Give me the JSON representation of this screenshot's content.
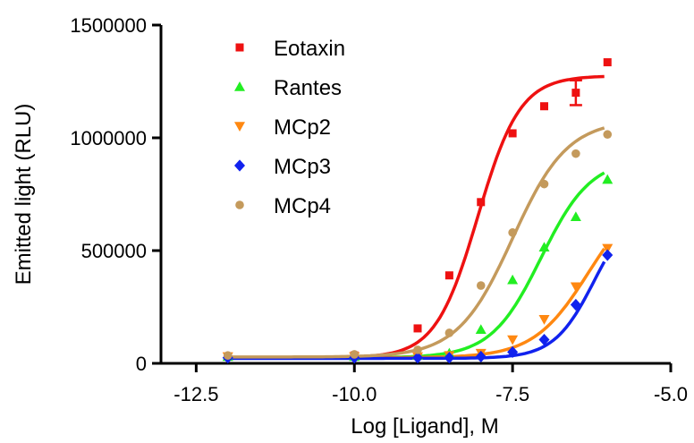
{
  "chart_data": {
    "type": "scatter",
    "xlabel": "Log [Ligand], M",
    "ylabel": "Emitted light (RLU)",
    "xlim": [
      -13.0,
      -5.0
    ],
    "ylim": [
      0,
      1500000
    ],
    "xticks": [
      -12.5,
      -10.0,
      -7.5,
      -5.0
    ],
    "xtick_labels": [
      "-12.5",
      "-10.0",
      "-7.5",
      "-5.0"
    ],
    "yticks": [
      0,
      500000,
      1000000,
      1500000
    ],
    "ytick_labels": [
      "0",
      "500000",
      "1000000",
      "1500000"
    ],
    "legend_position": "top-left",
    "series": [
      {
        "name": "Eotaxin",
        "color": "#ee1111",
        "marker": "square",
        "x": [
          -12,
          -10,
          -9,
          -8.5,
          -8,
          -7.5,
          -7,
          -6.5,
          -6
        ],
        "y": [
          30000,
          35000,
          155000,
          390000,
          715000,
          1020000,
          1140000,
          1200000,
          1335000
        ],
        "error": [
          0,
          0,
          0,
          0,
          0,
          0,
          0,
          55000,
          0
        ],
        "fit": {
          "bottom": 25000,
          "top": 1275000,
          "logec50": -8.05,
          "hill": 1.3
        }
      },
      {
        "name": "Rantes",
        "color": "#22ee22",
        "marker": "triangle-up",
        "x": [
          -12,
          -10,
          -9,
          -8.5,
          -8,
          -7.5,
          -7,
          -6.5,
          -6
        ],
        "y": [
          30000,
          30000,
          35000,
          45000,
          150000,
          370000,
          515000,
          650000,
          815000
        ],
        "error": [
          0,
          0,
          0,
          0,
          0,
          0,
          0,
          0,
          0
        ],
        "fit": {
          "bottom": 25000,
          "top": 910000,
          "logec50": -7.05,
          "hill": 1.1
        }
      },
      {
        "name": "MCp2",
        "color": "#ff8811",
        "marker": "triangle-down",
        "x": [
          -12,
          -10,
          -9,
          -8.5,
          -8,
          -7.5,
          -7,
          -6.5,
          -6
        ],
        "y": [
          30000,
          30000,
          30000,
          35000,
          45000,
          105000,
          195000,
          340000,
          510000
        ],
        "error": [
          0,
          0,
          0,
          0,
          0,
          0,
          0,
          0,
          0
        ],
        "fit": {
          "bottom": 25000,
          "top": 780000,
          "logec50": -6.3,
          "hill": 1.0
        }
      },
      {
        "name": "MCp3",
        "color": "#1122ee",
        "marker": "diamond",
        "x": [
          -12,
          -10,
          -9,
          -8.5,
          -8,
          -7.5,
          -7,
          -6.5,
          -6
        ],
        "y": [
          25000,
          25000,
          25000,
          25000,
          30000,
          50000,
          105000,
          260000,
          480000
        ],
        "error": [
          0,
          0,
          0,
          0,
          0,
          0,
          0,
          0,
          0
        ],
        "fit": {
          "bottom": 22000,
          "top": 720000,
          "logec50": -6.2,
          "hill": 1.35
        }
      },
      {
        "name": "MCp4",
        "color": "#c49a5c",
        "marker": "circle",
        "x": [
          -12,
          -10,
          -9,
          -8.5,
          -8,
          -7.5,
          -7,
          -6.5,
          -6
        ],
        "y": [
          35000,
          40000,
          60000,
          135000,
          345000,
          580000,
          795000,
          930000,
          1015000
        ],
        "error": [
          0,
          0,
          0,
          0,
          0,
          0,
          0,
          0,
          0
        ],
        "fit": {
          "bottom": 28000,
          "top": 1080000,
          "logec50": -7.5,
          "hill": 1.0
        }
      }
    ]
  }
}
